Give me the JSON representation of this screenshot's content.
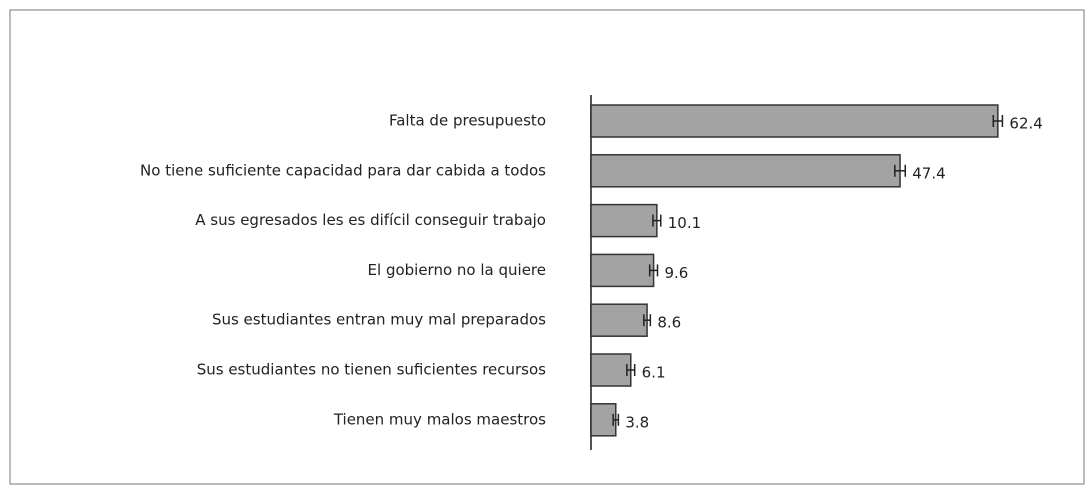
{
  "chart_data": {
    "type": "bar",
    "orientation": "horizontal",
    "categories": [
      "Falta de presupuesto",
      "No tiene suficiente capacidad para dar cabida a todos",
      "A sus egresados les es difícil conseguir trabajo",
      "El gobierno no la quiere",
      "Sus estudiantes entran muy mal preparados",
      "Sus estudiantes no tienen suficientes recursos",
      "Tienen muy malos maestros"
    ],
    "values": [
      62.4,
      47.4,
      10.1,
      9.6,
      8.6,
      6.1,
      3.8
    ],
    "errors": [
      0.7,
      0.8,
      0.6,
      0.6,
      0.5,
      0.6,
      0.4
    ],
    "color": "#a3a3a3"
  }
}
